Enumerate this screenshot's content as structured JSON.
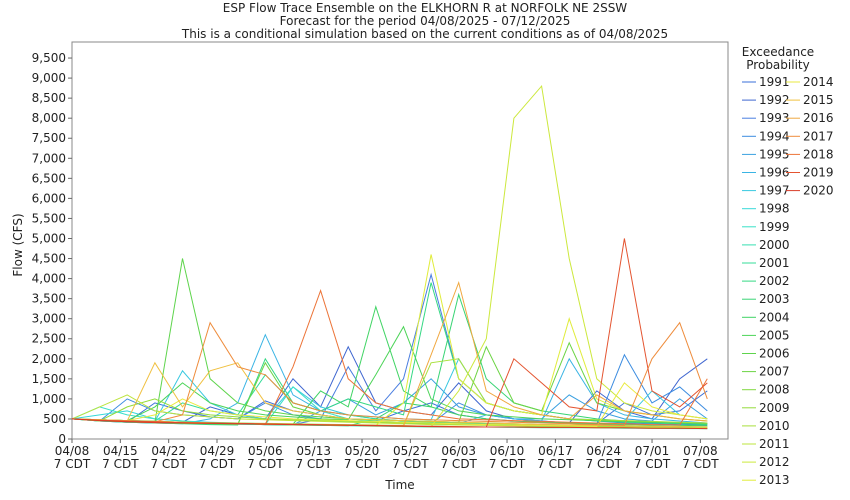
{
  "chart_data": {
    "type": "line",
    "title": "ESP Flow Trace Ensemble on the ELKHORN R at NORFOLK NE 2SSW",
    "subtitle": "Forecast for the period 04/08/2025 - 07/12/2025",
    "note": "This is a conditional simulation based on the current conditions as of 04/08/2025",
    "x_label": "Time",
    "y_label": "Flow (CFS)",
    "legend_title": "Exceedance\nProbability",
    "x": [
      "2025-04-08",
      "2025-04-12",
      "2025-04-16",
      "2025-04-20",
      "2025-04-24",
      "2025-04-28",
      "2025-05-02",
      "2025-05-06",
      "2025-05-10",
      "2025-05-14",
      "2025-05-18",
      "2025-05-22",
      "2025-05-26",
      "2025-05-30",
      "2025-06-03",
      "2025-06-07",
      "2025-06-11",
      "2025-06-15",
      "2025-06-19",
      "2025-06-23",
      "2025-06-27",
      "2025-07-01",
      "2025-07-05",
      "2025-07-09"
    ],
    "xlim": [
      "2025-04-08",
      "2025-07-12"
    ],
    "xticks": [
      {
        "value": "2025-04-08",
        "label": "04/08\n7 CDT"
      },
      {
        "value": "2025-04-15",
        "label": "04/15\n7 CDT"
      },
      {
        "value": "2025-04-22",
        "label": "04/22\n7 CDT"
      },
      {
        "value": "2025-04-29",
        "label": "04/29\n7 CDT"
      },
      {
        "value": "2025-05-06",
        "label": "05/06\n7 CDT"
      },
      {
        "value": "2025-05-13",
        "label": "05/13\n7 CDT"
      },
      {
        "value": "2025-05-20",
        "label": "05/20\n7 CDT"
      },
      {
        "value": "2025-05-27",
        "label": "05/27\n7 CDT"
      },
      {
        "value": "2025-06-03",
        "label": "06/03\n7 CDT"
      },
      {
        "value": "2025-06-10",
        "label": "06/10\n7 CDT"
      },
      {
        "value": "2025-06-17",
        "label": "06/17\n7 CDT"
      },
      {
        "value": "2025-06-24",
        "label": "06/24\n7 CDT"
      },
      {
        "value": "2025-07-01",
        "label": "07/01\n7 CDT"
      },
      {
        "value": "2025-07-08",
        "label": "07/08\n7 CDT"
      }
    ],
    "ylim": [
      0,
      9900
    ],
    "yticks": [
      0,
      500,
      {
        "value": 1000,
        "label": "1,000"
      },
      {
        "value": 1500,
        "label": "1,500"
      },
      {
        "value": 2000,
        "label": "2,000"
      },
      {
        "value": 2500,
        "label": "2,500"
      },
      {
        "value": 3000,
        "label": "3,000"
      },
      {
        "value": 3500,
        "label": "3,500"
      },
      {
        "value": 4000,
        "label": "4,000"
      },
      {
        "value": 4500,
        "label": "4,500"
      },
      {
        "value": 5000,
        "label": "5,000"
      },
      {
        "value": 5500,
        "label": "5,500"
      },
      {
        "value": 6000,
        "label": "6,000"
      },
      {
        "value": 6500,
        "label": "6,500"
      },
      {
        "value": 7000,
        "label": "7,000"
      },
      {
        "value": 7500,
        "label": "7,500"
      },
      {
        "value": 8000,
        "label": "8,000"
      },
      {
        "value": 8500,
        "label": "8,500"
      },
      {
        "value": 9000,
        "label": "9,000"
      },
      {
        "value": 9500,
        "label": "9,500"
      }
    ],
    "series": [
      {
        "name": "1991",
        "color": "#3a6fd8",
        "values": [
          500,
          450,
          420,
          900,
          700,
          550,
          500,
          950,
          700,
          600,
          500,
          450,
          700,
          900,
          600,
          500,
          450,
          420,
          400,
          380,
          900,
          600,
          700,
          1200
        ]
      },
      {
        "name": "1992",
        "color": "#3f66d0",
        "values": [
          500,
          460,
          430,
          400,
          420,
          800,
          600,
          500,
          1500,
          800,
          2300,
          900,
          700,
          600,
          1400,
          700,
          500,
          450,
          400,
          1200,
          700,
          500,
          1500,
          2000
        ]
      },
      {
        "name": "1993",
        "color": "#4a7ee0",
        "values": [
          500,
          470,
          440,
          420,
          400,
          390,
          380,
          370,
          360,
          500,
          1800,
          700,
          1500,
          4100,
          1500,
          900,
          700,
          600,
          500,
          450,
          400,
          380,
          360,
          350
        ]
      },
      {
        "name": "1994",
        "color": "#3c8ce0",
        "values": [
          500,
          450,
          1000,
          700,
          600,
          550,
          500,
          900,
          600,
          500,
          450,
          420,
          400,
          380,
          900,
          600,
          500,
          450,
          400,
          380,
          2100,
          900,
          1300,
          700
        ]
      },
      {
        "name": "1995",
        "color": "#3aa0e0",
        "values": [
          500,
          460,
          420,
          400,
          390,
          380,
          370,
          360,
          350,
          700,
          1000,
          600,
          900,
          1500,
          800,
          600,
          500,
          500,
          1100,
          700,
          500,
          450,
          1000,
          500
        ]
      },
      {
        "name": "1996",
        "color": "#3ab4e4",
        "values": [
          500,
          450,
          420,
          400,
          380,
          500,
          900,
          2600,
          1100,
          700,
          600,
          500,
          450,
          400,
          380,
          600,
          500,
          450,
          2000,
          900,
          600,
          500,
          450,
          400
        ]
      },
      {
        "name": "1997",
        "color": "#38c8e0",
        "values": [
          500,
          480,
          460,
          440,
          1700,
          900,
          600,
          500,
          1300,
          800,
          600,
          550,
          500,
          480,
          2000,
          900,
          700,
          600,
          500,
          480,
          460,
          1200,
          600,
          500
        ]
      },
      {
        "name": "1998",
        "color": "#36d8d8",
        "values": [
          500,
          600,
          700,
          500,
          450,
          420,
          400,
          380,
          360,
          350,
          340,
          330,
          320,
          310,
          300,
          300,
          300,
          300,
          300,
          300,
          300,
          300,
          300,
          300
        ]
      },
      {
        "name": "1999",
        "color": "#38e0c8",
        "values": [
          500,
          800,
          600,
          500,
          450,
          400,
          380,
          360,
          1300,
          700,
          500,
          450,
          420,
          400,
          380,
          360,
          340,
          330,
          320,
          310,
          300,
          300,
          300,
          300
        ]
      },
      {
        "name": "2000",
        "color": "#36e0b0",
        "values": [
          500,
          470,
          440,
          420,
          400,
          380,
          370,
          360,
          350,
          340,
          330,
          320,
          310,
          300,
          300,
          300,
          290,
          280,
          280,
          280,
          270,
          270,
          260,
          260
        ]
      },
      {
        "name": "2001",
        "color": "#34dc98",
        "values": [
          500,
          480,
          460,
          450,
          900,
          700,
          600,
          1600,
          900,
          700,
          600,
          500,
          450,
          420,
          400,
          380,
          370,
          360,
          350,
          340,
          330,
          320,
          310,
          300
        ]
      },
      {
        "name": "2002",
        "color": "#34d884",
        "values": [
          500,
          450,
          420,
          400,
          380,
          360,
          350,
          2000,
          900,
          700,
          1000,
          800,
          600,
          3900,
          1500,
          900,
          700,
          600,
          500,
          450,
          420,
          400,
          380,
          360
        ]
      },
      {
        "name": "2003",
        "color": "#38d474",
        "values": [
          500,
          480,
          460,
          440,
          420,
          400,
          380,
          360,
          350,
          340,
          330,
          500,
          900,
          800,
          3600,
          1500,
          900,
          700,
          600,
          500,
          450,
          420,
          400,
          380
        ]
      },
      {
        "name": "2004",
        "color": "#40d464",
        "values": [
          500,
          470,
          450,
          430,
          410,
          400,
          390,
          380,
          370,
          1200,
          800,
          3300,
          1200,
          800,
          600,
          500,
          450,
          420,
          400,
          380,
          360,
          350,
          340,
          330
        ]
      },
      {
        "name": "2005",
        "color": "#4cd458",
        "values": [
          500,
          480,
          460,
          800,
          1400,
          900,
          700,
          600,
          550,
          500,
          480,
          1600,
          2800,
          1000,
          700,
          600,
          550,
          500,
          480,
          460,
          440,
          420,
          400,
          380
        ]
      },
      {
        "name": "2006",
        "color": "#5ed44c",
        "values": [
          500,
          470,
          440,
          420,
          4500,
          1500,
          900,
          700,
          600,
          550,
          500,
          480,
          460,
          440,
          420,
          400,
          380,
          360,
          350,
          340,
          330,
          320,
          310,
          300
        ]
      },
      {
        "name": "2007",
        "color": "#6cd444",
        "values": [
          500,
          460,
          430,
          410,
          390,
          380,
          370,
          1900,
          800,
          600,
          500,
          480,
          460,
          440,
          420,
          2300,
          900,
          700,
          2400,
          900,
          700,
          600,
          500,
          450
        ]
      },
      {
        "name": "2008",
        "color": "#80d840",
        "values": [
          500,
          480,
          460,
          440,
          420,
          400,
          390,
          380,
          370,
          360,
          350,
          340,
          330,
          320,
          310,
          300,
          300,
          290,
          290,
          280,
          280,
          270,
          270,
          260
        ]
      },
      {
        "name": "2009",
        "color": "#94dc3c",
        "values": [
          500,
          450,
          800,
          1000,
          700,
          600,
          550,
          500,
          480,
          460,
          440,
          420,
          400,
          380,
          370,
          360,
          350,
          340,
          330,
          320,
          310,
          300,
          300,
          300
        ]
      },
      {
        "name": "2010",
        "color": "#a8e03c",
        "values": [
          500,
          470,
          450,
          430,
          420,
          410,
          400,
          390,
          380,
          370,
          360,
          350,
          340,
          1900,
          2000,
          900,
          700,
          600,
          500,
          480,
          460,
          440,
          420,
          400
        ]
      },
      {
        "name": "2011",
        "color": "#bce43c",
        "values": [
          500,
          800,
          1100,
          700,
          600,
          550,
          500,
          480,
          460,
          440,
          420,
          400,
          380,
          360,
          350,
          340,
          330,
          320,
          310,
          300,
          300,
          290,
          290,
          280
        ]
      },
      {
        "name": "2012",
        "color": "#cce83c",
        "values": [
          500,
          480,
          460,
          440,
          420,
          400,
          380,
          370,
          360,
          350,
          340,
          330,
          320,
          310,
          1200,
          2500,
          8000,
          8800,
          4500,
          1500,
          900,
          700,
          600,
          500
        ]
      },
      {
        "name": "2013",
        "color": "#e0ec3c",
        "values": [
          500,
          470,
          450,
          430,
          410,
          400,
          390,
          380,
          370,
          360,
          350,
          340,
          900,
          4600,
          1500,
          900,
          700,
          600,
          3000,
          1000,
          700,
          600,
          500,
          450
        ]
      },
      {
        "name": "2014",
        "color": "#eaea40",
        "values": [
          500,
          480,
          460,
          600,
          1000,
          700,
          600,
          550,
          500,
          480,
          460,
          440,
          420,
          400,
          380,
          360,
          350,
          340,
          330,
          320,
          1400,
          800,
          600,
          500
        ]
      },
      {
        "name": "2015",
        "color": "#f0c040",
        "values": [
          500,
          470,
          450,
          1900,
          800,
          1700,
          1900,
          900,
          700,
          600,
          500,
          480,
          460,
          440,
          420,
          400,
          380,
          360,
          350,
          340,
          330,
          320,
          310,
          300
        ]
      },
      {
        "name": "2016",
        "color": "#f0a840",
        "values": [
          500,
          480,
          460,
          440,
          420,
          400,
          380,
          370,
          360,
          350,
          340,
          330,
          320,
          2100,
          3900,
          1200,
          800,
          600,
          500,
          1100,
          700,
          600,
          500,
          450
        ]
      },
      {
        "name": "2017",
        "color": "#ee8c3c",
        "values": [
          500,
          470,
          450,
          430,
          600,
          2900,
          1800,
          1600,
          900,
          700,
          600,
          550,
          500,
          480,
          460,
          440,
          420,
          400,
          380,
          360,
          340,
          2000,
          2900,
          1000
        ]
      },
      {
        "name": "2018",
        "color": "#ec7438",
        "values": [
          500,
          460,
          430,
          410,
          400,
          390,
          380,
          370,
          1800,
          3700,
          1500,
          900,
          700,
          600,
          500,
          480,
          460,
          440,
          420,
          400,
          380,
          360,
          350,
          1500
        ]
      },
      {
        "name": "2019",
        "color": "#e45430",
        "values": [
          500,
          470,
          450,
          430,
          410,
          400,
          390,
          380,
          370,
          360,
          350,
          340,
          330,
          320,
          310,
          300,
          2000,
          1400,
          800,
          700,
          5000,
          1200,
          800,
          1400
        ]
      },
      {
        "name": "2020",
        "color": "#d83c28",
        "values": [
          500,
          460,
          430,
          410,
          400,
          390,
          380,
          370,
          360,
          350,
          340,
          330,
          320,
          310,
          300,
          300,
          300,
          290,
          290,
          280,
          280,
          270,
          270,
          260
        ]
      }
    ]
  }
}
